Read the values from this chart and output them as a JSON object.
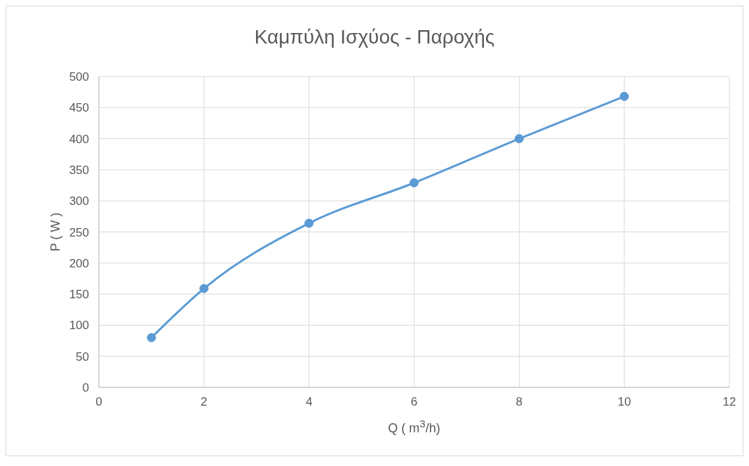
{
  "chart_data": {
    "type": "line",
    "title": "Καμπύλη Ισχύος - Παροχής",
    "xlabel": "Q ( m$^{3}$/h)",
    "ylabel": "P ( W )",
    "x": [
      1,
      2,
      4,
      6,
      8,
      10
    ],
    "series": [
      {
        "color": "#5b9bd5",
        "values": [
          80,
          159,
          264,
          329,
          400,
          468
        ]
      }
    ],
    "xlim": [
      0,
      12
    ],
    "xticks": [
      0,
      2,
      4,
      6,
      8,
      10,
      12
    ],
    "ylim": [
      0,
      500
    ],
    "yticks": [
      0,
      50,
      100,
      150,
      200,
      250,
      300,
      350,
      400,
      450,
      500
    ],
    "grid": true,
    "legend": false,
    "marker": "circle",
    "line_style": "solid"
  }
}
